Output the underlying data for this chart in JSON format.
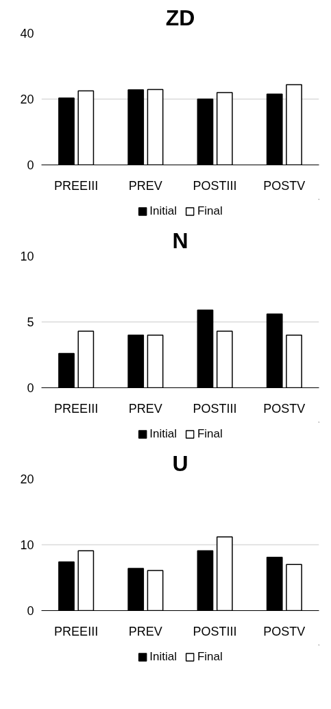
{
  "chart_data": [
    {
      "type": "bar",
      "title": "ZD",
      "categories": [
        "PREEIII",
        "PREV",
        "POSTIII",
        "POSTV"
      ],
      "ylim": [
        0,
        40
      ],
      "yticks": [
        0,
        20,
        40
      ],
      "grid": "y",
      "legend": "bottom",
      "series": [
        {
          "name": "Initial",
          "color": "#000000",
          "values": [
            20.3,
            22.8,
            20.0,
            21.5
          ]
        },
        {
          "name": "Final",
          "color": "#ffffff",
          "values": [
            22.5,
            22.9,
            22.0,
            24.4
          ]
        }
      ]
    },
    {
      "type": "bar",
      "title": "N",
      "categories": [
        "PREEIII",
        "PREV",
        "POSTIII",
        "POSTV"
      ],
      "ylim": [
        0,
        10
      ],
      "yticks": [
        0,
        5,
        10
      ],
      "grid": "y",
      "legend": "bottom",
      "series": [
        {
          "name": "Initial",
          "color": "#000000",
          "values": [
            2.6,
            4.0,
            5.9,
            5.6
          ]
        },
        {
          "name": "Final",
          "color": "#ffffff",
          "values": [
            4.3,
            4.0,
            4.3,
            4.0
          ]
        }
      ]
    },
    {
      "type": "bar",
      "title": "U",
      "categories": [
        "PREEIII",
        "PREV",
        "POSTIII",
        "POSTV"
      ],
      "ylim": [
        0,
        20
      ],
      "yticks": [
        0,
        10,
        20
      ],
      "grid": "y",
      "legend": "bottom",
      "series": [
        {
          "name": "Initial",
          "color": "#000000",
          "values": [
            7.4,
            6.4,
            9.1,
            8.1
          ]
        },
        {
          "name": "Final",
          "color": "#ffffff",
          "values": [
            9.1,
            6.1,
            11.2,
            7.0
          ]
        }
      ]
    }
  ]
}
